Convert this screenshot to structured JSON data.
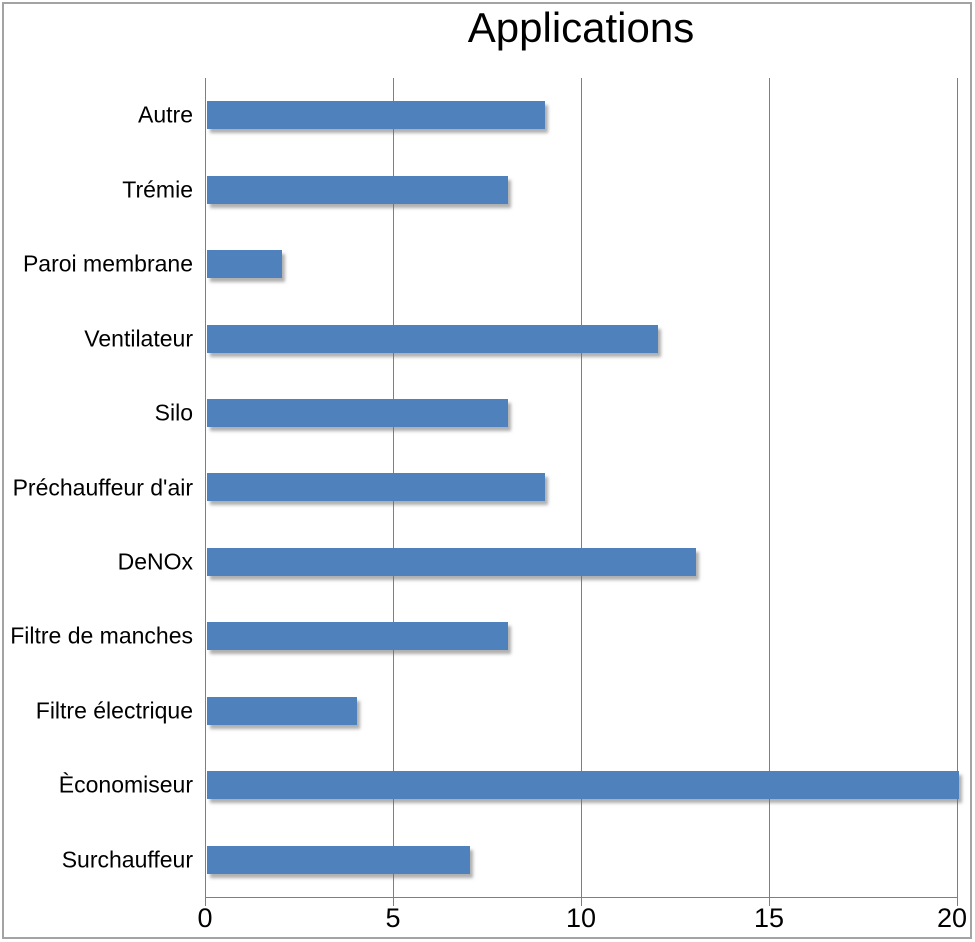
{
  "chart_data": {
    "type": "bar",
    "orientation": "horizontal",
    "title": "Applications",
    "categories": [
      "Autre",
      "Trémie",
      "Paroi membrane",
      "Ventilateur",
      "Silo",
      "Préchauffeur d'air",
      "DeNOx",
      "Filtre de manches",
      "Filtre électrique",
      "Èconomiseur",
      "Surchauffeur"
    ],
    "values": [
      9,
      8,
      2,
      12,
      8,
      9,
      13,
      8,
      4,
      20,
      7
    ],
    "xlabel": "",
    "ylabel": "",
    "xlim": [
      0,
      20
    ],
    "xticks": [
      0,
      5,
      10,
      15,
      20
    ],
    "grid": "vertical-only",
    "legend": "none",
    "bar_color": "#4f81bd",
    "gridline_color": "#7f7f7f",
    "axis_color": "#7f7f7f",
    "title_color": "#000000",
    "background_color": "#ffffff"
  }
}
